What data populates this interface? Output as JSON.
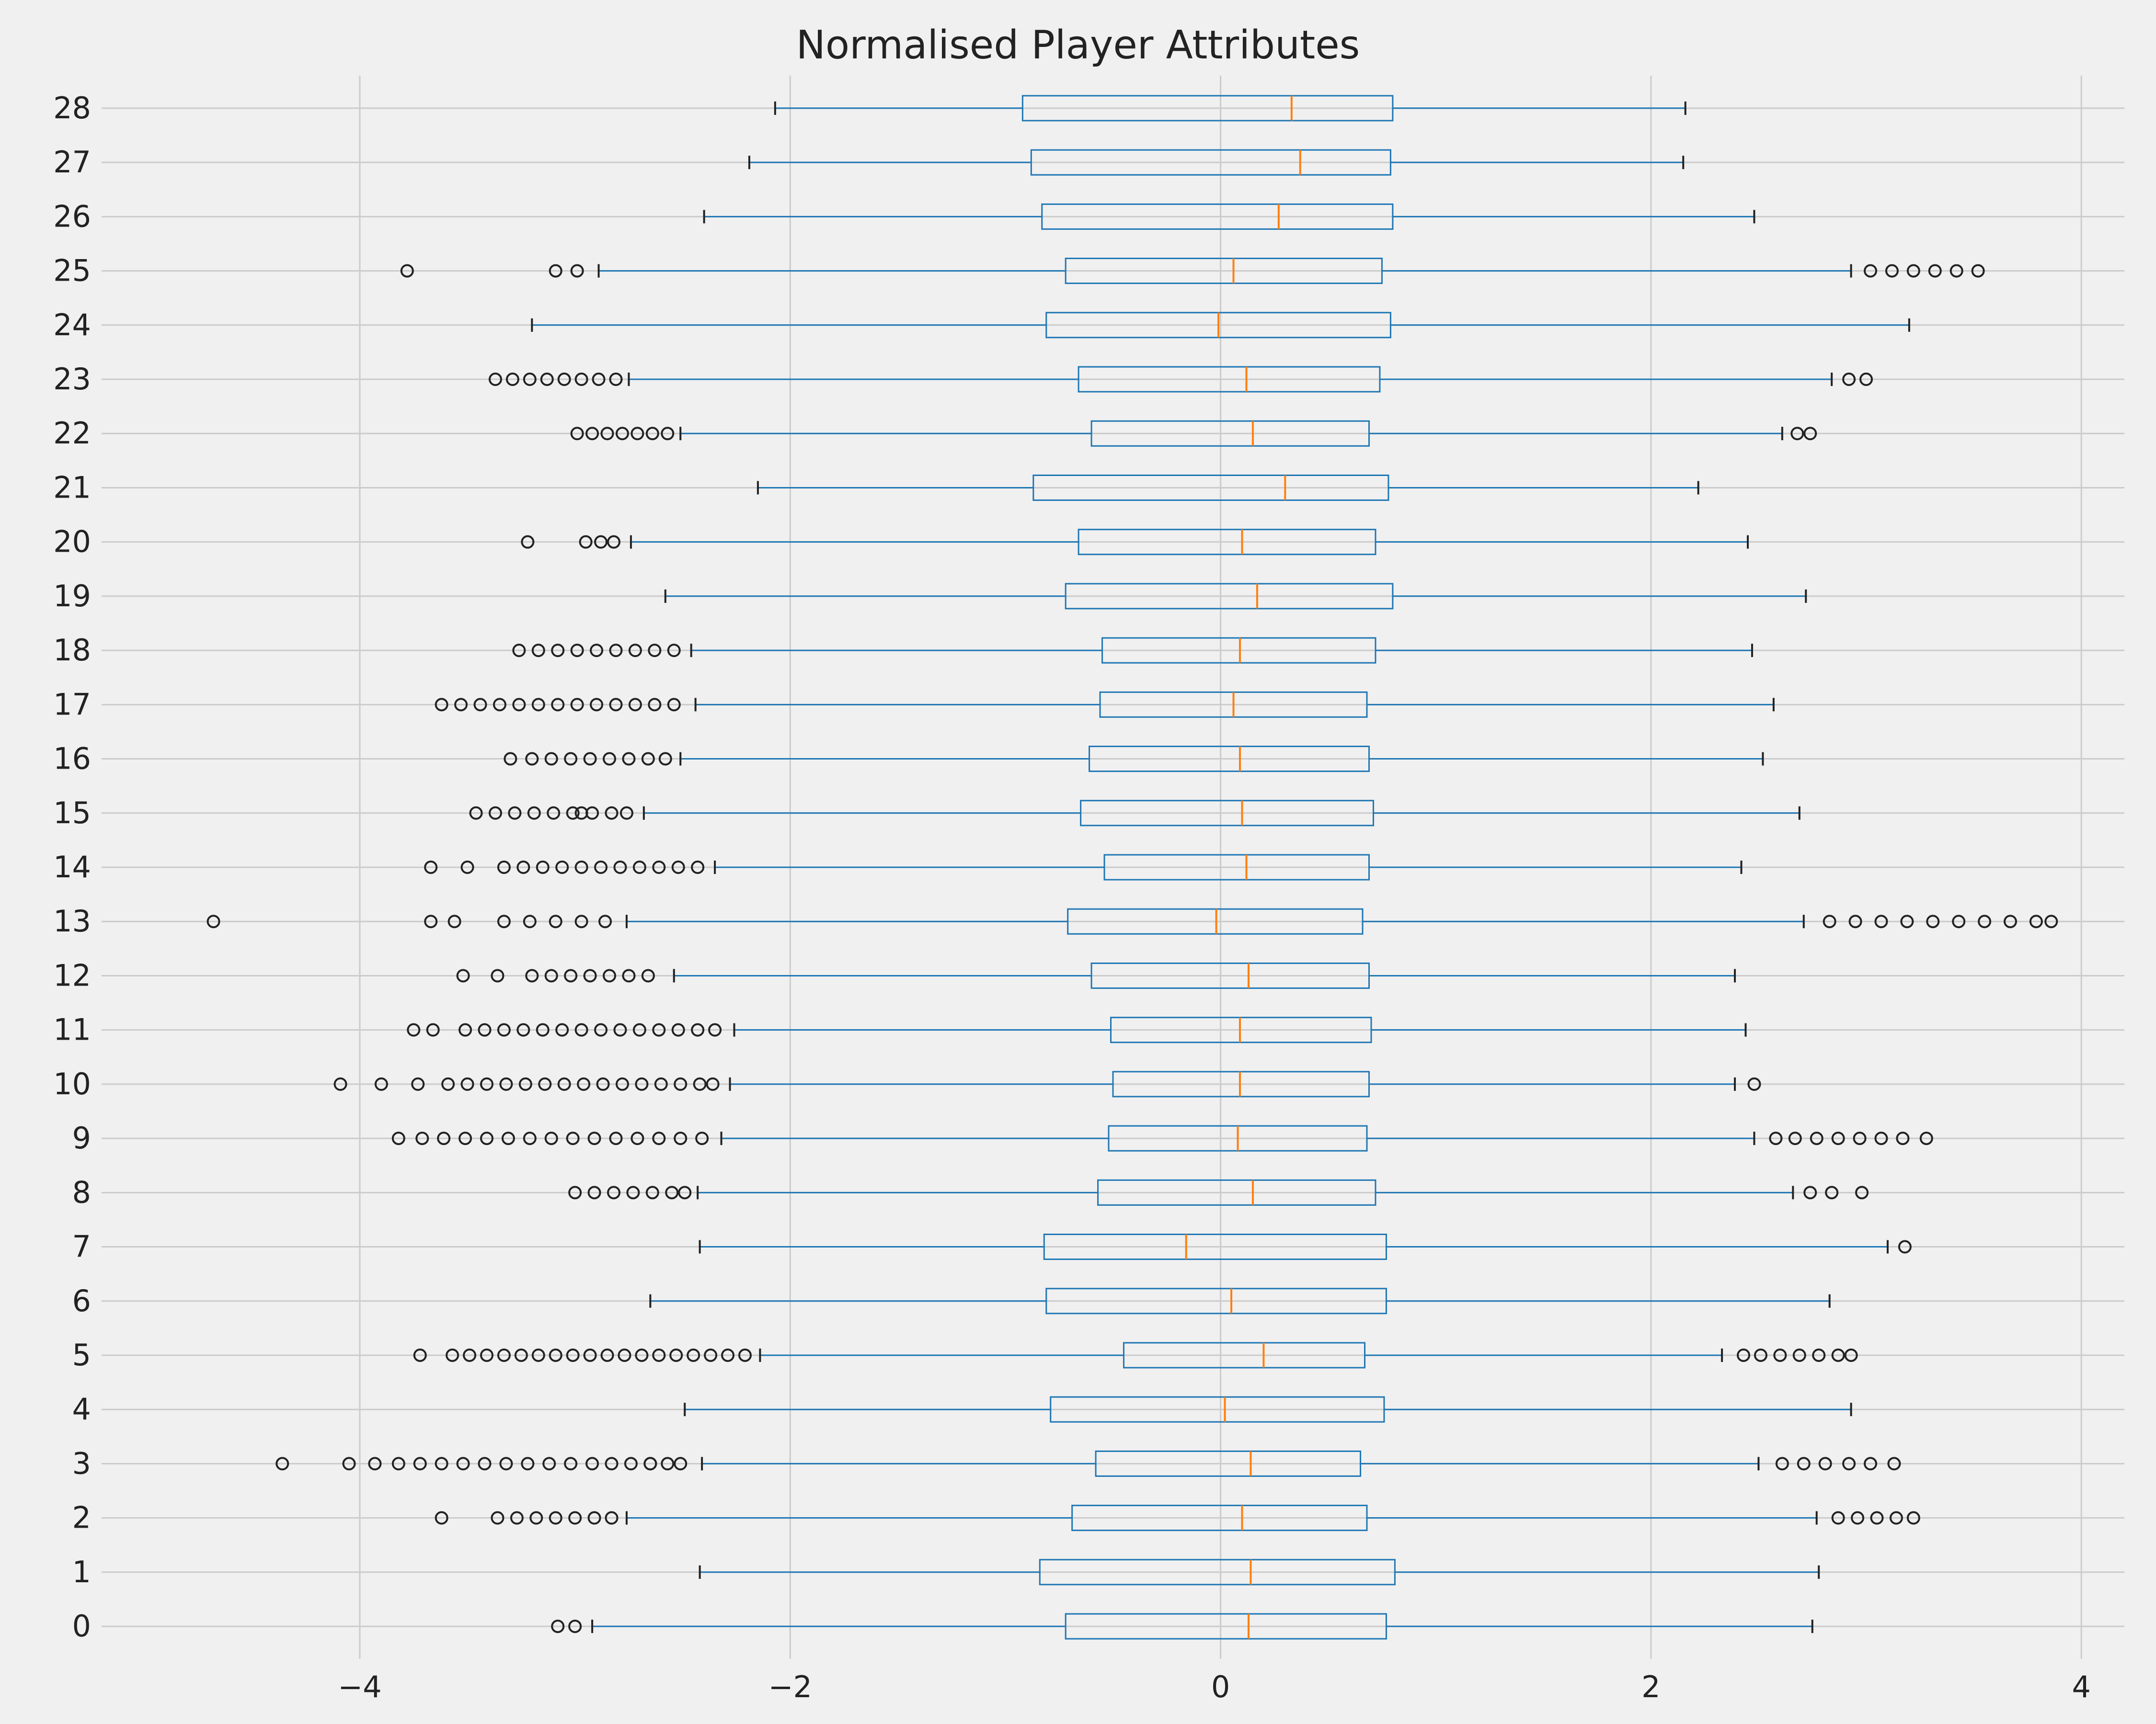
{
  "chart_data": {
    "type": "boxplot",
    "orientation": "horizontal",
    "title": "Normalised Player Attributes",
    "xlim": [
      -5.2,
      4.2
    ],
    "ylim": [
      -0.6,
      28.6
    ],
    "xticks": [
      -4,
      -2,
      0,
      2,
      4
    ],
    "xtick_labels": [
      "−4",
      "−2",
      "0",
      "2",
      "4"
    ],
    "grid": true,
    "colors": {
      "background": "#f0f0f0",
      "grid": "#cbcbcb",
      "box": "#1f77b4",
      "median": "#ff7f0e",
      "flier": "#222222"
    },
    "boxes": [
      {
        "label": "0",
        "whislo": -2.92,
        "q1": -0.72,
        "med": 0.13,
        "q3": 0.77,
        "whishi": 2.75,
        "fliers": [
          -3.08,
          -3.0
        ]
      },
      {
        "label": "1",
        "whislo": -2.42,
        "q1": -0.84,
        "med": 0.14,
        "q3": 0.81,
        "whishi": 2.78,
        "fliers": []
      },
      {
        "label": "2",
        "whislo": -2.76,
        "q1": -0.69,
        "med": 0.1,
        "q3": 0.68,
        "whishi": 2.77,
        "fliers": [
          -3.62,
          -3.36,
          -3.27,
          -3.18,
          -3.09,
          -3.0,
          -2.91,
          -2.83,
          2.87,
          2.96,
          3.05,
          3.14,
          3.22
        ]
      },
      {
        "label": "3",
        "whislo": -2.41,
        "q1": -0.58,
        "med": 0.14,
        "q3": 0.65,
        "whishi": 2.5,
        "fliers": [
          -4.36,
          -4.05,
          -3.93,
          -3.82,
          -3.72,
          -3.62,
          -3.52,
          -3.42,
          -3.32,
          -3.22,
          -3.12,
          -3.02,
          -2.92,
          -2.83,
          -2.74,
          -2.65,
          -2.57,
          -2.51,
          -2.65,
          2.61,
          2.71,
          2.81,
          2.92,
          3.02,
          3.13
        ]
      },
      {
        "label": "4",
        "whislo": -2.49,
        "q1": -0.79,
        "med": 0.02,
        "q3": 0.76,
        "whishi": 2.93,
        "fliers": []
      },
      {
        "label": "5",
        "whislo": -2.14,
        "q1": -0.45,
        "med": 0.2,
        "q3": 0.67,
        "whishi": 2.33,
        "fliers": [
          -3.72,
          -3.57,
          -3.49,
          -3.41,
          -3.33,
          -3.25,
          -3.17,
          -3.09,
          -3.01,
          -2.93,
          -2.85,
          -2.77,
          -2.69,
          -2.61,
          -2.53,
          -2.45,
          -2.37,
          -2.29,
          -2.21,
          2.43,
          2.51,
          2.6,
          2.69,
          2.78,
          2.87,
          2.93
        ]
      },
      {
        "label": "6",
        "whislo": -2.65,
        "q1": -0.81,
        "med": 0.05,
        "q3": 0.77,
        "whishi": 2.83,
        "fliers": []
      },
      {
        "label": "7",
        "whislo": -2.42,
        "q1": -0.82,
        "med": -0.16,
        "q3": 0.77,
        "whishi": 3.1,
        "fliers": [
          3.18
        ]
      },
      {
        "label": "8",
        "whislo": -2.43,
        "q1": -0.57,
        "med": 0.15,
        "q3": 0.72,
        "whishi": 2.66,
        "fliers": [
          -3.0,
          -2.91,
          -2.82,
          -2.73,
          -2.64,
          -2.55,
          -2.49,
          2.74,
          2.84,
          2.98
        ]
      },
      {
        "label": "9",
        "whislo": -2.32,
        "q1": -0.52,
        "med": 0.08,
        "q3": 0.68,
        "whishi": 2.48,
        "fliers": [
          -3.82,
          -3.71,
          -3.61,
          -3.51,
          -3.41,
          -3.31,
          -3.21,
          -3.11,
          -3.01,
          -2.91,
          -2.81,
          -2.71,
          -2.61,
          -2.51,
          -2.41,
          2.58,
          2.67,
          2.77,
          2.87,
          2.97,
          3.07,
          3.17,
          3.28
        ]
      },
      {
        "label": "10",
        "whislo": -2.28,
        "q1": -0.5,
        "med": 0.09,
        "q3": 0.69,
        "whishi": 2.39,
        "fliers": [
          -4.09,
          -3.9,
          -3.73,
          -3.59,
          -3.5,
          -3.41,
          -3.32,
          -3.23,
          -3.14,
          -3.05,
          -2.96,
          -2.87,
          -2.78,
          -2.69,
          -2.6,
          -2.51,
          -2.42,
          -2.36,
          2.48
        ]
      },
      {
        "label": "11",
        "whislo": -2.26,
        "q1": -0.51,
        "med": 0.09,
        "q3": 0.7,
        "whishi": 2.44,
        "fliers": [
          -3.75,
          -3.66,
          -3.51,
          -3.42,
          -3.33,
          -3.24,
          -3.15,
          -3.06,
          -2.97,
          -2.88,
          -2.79,
          -2.7,
          -2.61,
          -2.52,
          -2.43,
          -2.35
        ]
      },
      {
        "label": "12",
        "whislo": -2.54,
        "q1": -0.6,
        "med": 0.13,
        "q3": 0.69,
        "whishi": 2.39,
        "fliers": [
          -3.52,
          -3.36,
          -3.2,
          -3.11,
          -3.02,
          -2.93,
          -2.84,
          -2.75,
          -2.66
        ]
      },
      {
        "label": "13",
        "whislo": -2.76,
        "q1": -0.71,
        "med": -0.02,
        "q3": 0.66,
        "whishi": 2.71,
        "fliers": [
          -4.68,
          -3.67,
          -3.56,
          -3.33,
          -3.21,
          -3.09,
          -2.97,
          -2.86,
          2.83,
          2.95,
          3.07,
          3.19,
          3.31,
          3.43,
          3.55,
          3.67,
          3.79,
          3.86
        ]
      },
      {
        "label": "14",
        "whislo": -2.35,
        "q1": -0.54,
        "med": 0.12,
        "q3": 0.69,
        "whishi": 2.42,
        "fliers": [
          -3.67,
          -3.5,
          -3.33,
          -3.24,
          -3.15,
          -3.06,
          -2.97,
          -2.88,
          -2.79,
          -2.7,
          -2.61,
          -2.52,
          -2.43
        ]
      },
      {
        "label": "15",
        "whislo": -2.68,
        "q1": -0.65,
        "med": 0.1,
        "q3": 0.71,
        "whishi": 2.69,
        "fliers": [
          -3.46,
          -3.37,
          -3.28,
          -3.19,
          -3.1,
          -3.01,
          -2.92,
          -2.83,
          -2.76,
          -2.97
        ]
      },
      {
        "label": "16",
        "whislo": -2.51,
        "q1": -0.61,
        "med": 0.09,
        "q3": 0.69,
        "whishi": 2.52,
        "fliers": [
          -3.3,
          -3.2,
          -3.11,
          -3.02,
          -2.93,
          -2.84,
          -2.75,
          -2.66,
          -2.58
        ]
      },
      {
        "label": "17",
        "whislo": -2.44,
        "q1": -0.56,
        "med": 0.06,
        "q3": 0.68,
        "whishi": 2.57,
        "fliers": [
          -3.62,
          -3.53,
          -3.44,
          -3.35,
          -3.26,
          -3.17,
          -3.08,
          -2.99,
          -2.9,
          -2.81,
          -2.72,
          -2.63,
          -2.54
        ]
      },
      {
        "label": "18",
        "whislo": -2.46,
        "q1": -0.55,
        "med": 0.09,
        "q3": 0.72,
        "whishi": 2.47,
        "fliers": [
          -3.26,
          -3.17,
          -3.08,
          -2.99,
          -2.9,
          -2.81,
          -2.72,
          -2.63,
          -2.54
        ]
      },
      {
        "label": "19",
        "whislo": -2.58,
        "q1": -0.72,
        "med": 0.17,
        "q3": 0.8,
        "whishi": 2.72,
        "fliers": []
      },
      {
        "label": "20",
        "whislo": -2.74,
        "q1": -0.66,
        "med": 0.1,
        "q3": 0.72,
        "whishi": 2.45,
        "fliers": [
          -3.22,
          -2.95,
          -2.88,
          -2.82
        ]
      },
      {
        "label": "21",
        "whislo": -2.15,
        "q1": -0.87,
        "med": 0.3,
        "q3": 0.78,
        "whishi": 2.22,
        "fliers": []
      },
      {
        "label": "22",
        "whislo": -2.51,
        "q1": -0.6,
        "med": 0.15,
        "q3": 0.69,
        "whishi": 2.61,
        "fliers": [
          -2.99,
          -2.92,
          -2.85,
          -2.78,
          -2.71,
          -2.64,
          -2.57,
          2.68,
          2.74
        ]
      },
      {
        "label": "23",
        "whislo": -2.75,
        "q1": -0.66,
        "med": 0.12,
        "q3": 0.74,
        "whishi": 2.84,
        "fliers": [
          -3.37,
          -3.29,
          -3.21,
          -3.13,
          -3.05,
          -2.97,
          -2.89,
          -2.81,
          2.92,
          3.0
        ]
      },
      {
        "label": "24",
        "whislo": -3.2,
        "q1": -0.81,
        "med": -0.01,
        "q3": 0.79,
        "whishi": 3.2,
        "fliers": []
      },
      {
        "label": "25",
        "whislo": -2.89,
        "q1": -0.72,
        "med": 0.06,
        "q3": 0.75,
        "whishi": 2.93,
        "fliers": [
          -3.78,
          -3.09,
          -2.99,
          3.02,
          3.12,
          3.22,
          3.32,
          3.42,
          3.52
        ]
      },
      {
        "label": "26",
        "whislo": -2.4,
        "q1": -0.83,
        "med": 0.27,
        "q3": 0.8,
        "whishi": 2.48,
        "fliers": []
      },
      {
        "label": "27",
        "whislo": -2.19,
        "q1": -0.88,
        "med": 0.37,
        "q3": 0.79,
        "whishi": 2.15,
        "fliers": []
      },
      {
        "label": "28",
        "whislo": -2.07,
        "q1": -0.92,
        "med": 0.33,
        "q3": 0.8,
        "whishi": 2.16,
        "fliers": []
      }
    ]
  }
}
